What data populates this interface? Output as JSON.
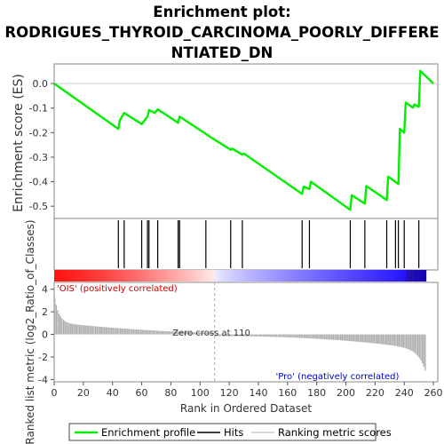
{
  "title_lines": [
    "Enrichment plot:",
    "RODRIGUES_THYROID_CARCINOMA_POORLY_DIFFERE",
    "NTIATED_DN"
  ],
  "chart_data": {
    "type": "line",
    "xlabel": "Rank in Ordered Dataset",
    "xlim": [
      0,
      263
    ],
    "x_ticks": [
      0,
      20,
      40,
      60,
      80,
      100,
      120,
      140,
      160,
      180,
      200,
      220,
      240,
      260
    ],
    "es_panel": {
      "ylabel": "Enrichment score (ES)",
      "ylim": [
        -0.55,
        0.08
      ],
      "y_ticks": [
        0.0,
        -0.1,
        -0.2,
        -0.3,
        -0.4,
        -0.5
      ],
      "y_tick_labels": [
        "0.0",
        "-0.1",
        "-0.2",
        "-0.3",
        "-0.4",
        "-0.5"
      ],
      "series": [
        {
          "name": "Enrichment profile",
          "color": "#00ee00",
          "x": [
            0,
            44,
            45,
            48,
            60,
            64,
            65,
            69,
            71,
            85,
            86,
            104,
            105,
            121,
            122,
            129,
            130,
            170,
            171,
            175,
            176,
            203,
            204,
            213,
            214,
            228,
            229,
            236,
            237,
            240,
            241,
            246,
            247,
            250,
            251,
            260
          ],
          "y": [
            0.0,
            -0.185,
            -0.15,
            -0.12,
            -0.165,
            -0.135,
            -0.108,
            -0.12,
            -0.105,
            -0.16,
            -0.135,
            -0.205,
            -0.21,
            -0.27,
            -0.265,
            -0.29,
            -0.285,
            -0.45,
            -0.42,
            -0.43,
            -0.4,
            -0.515,
            -0.455,
            -0.49,
            -0.418,
            -0.475,
            -0.38,
            -0.41,
            -0.185,
            -0.2,
            -0.078,
            -0.098,
            -0.085,
            -0.095,
            0.052,
            0.0
          ]
        }
      ]
    },
    "hits_panel": {
      "name": "Hits",
      "positions": [
        44,
        48,
        60,
        64,
        65,
        71,
        85,
        86,
        104,
        121,
        129,
        170,
        175,
        203,
        213,
        228,
        234,
        236,
        240,
        250
      ]
    },
    "metric_panel": {
      "ylabel": "Ranked list metric (log2_Ratio_of_Classes)",
      "ylim": [
        -4.2,
        4.6
      ],
      "y_ticks": [
        4,
        2,
        0,
        -2,
        -4
      ],
      "y_tick_labels": [
        "4",
        "2",
        "0",
        "-2",
        "-4"
      ],
      "name": "Ranking metric scores",
      "zero_cross": 110,
      "zero_cross_label": "Zero cross at 110",
      "pos_label": "'OIS' (positively correlated)",
      "neg_label": "'Pro' (negatively correlated)",
      "pos_color": "#ff0000",
      "neg_color": "#0000ff",
      "bar_color": "#b0b0b0"
    },
    "legend": {
      "placement": "bottom",
      "items": [
        {
          "label": "Enrichment profile",
          "color": "#00ee00"
        },
        {
          "label": "Hits",
          "color": "#000000"
        },
        {
          "label": "Ranking metric scores",
          "color": "#cccccc"
        }
      ]
    }
  }
}
